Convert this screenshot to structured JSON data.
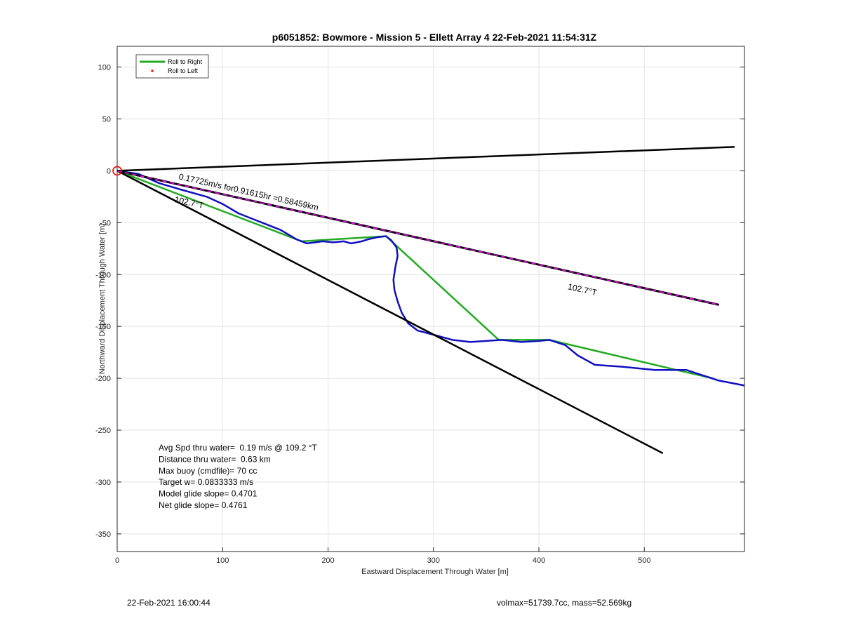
{
  "chart_data": {
    "type": "line",
    "title": "p6051852: Bowmore - Mission 5 - Ellett Array 4 22-Feb-2021 11:54:31Z",
    "xlabel": "Eastward Displacement Through Water [m]",
    "ylabel": "Northward Displacement Through Water [m]",
    "xlim": [
      0,
      595
    ],
    "ylim": [
      -367,
      120
    ],
    "xticks": [
      0,
      100,
      200,
      300,
      400,
      500
    ],
    "yticks": [
      100,
      50,
      0,
      -50,
      -100,
      -150,
      -200,
      -250,
      -300,
      -350
    ],
    "grid": true,
    "legend": {
      "position": "top-left",
      "entries": [
        {
          "label": "Roll to Right",
          "color": "#22aa22",
          "style": "line"
        },
        {
          "label": "Roll to Left",
          "color": "#ff0000",
          "style": "dot"
        }
      ]
    },
    "series": [
      {
        "name": "Roll to Right",
        "color": "#22aa22",
        "points": [
          [
            0,
            0
          ],
          [
            175,
            -68
          ],
          [
            255,
            -63
          ],
          [
            362,
            -163
          ],
          [
            410,
            -163
          ],
          [
            535,
            -193
          ],
          [
            565,
            -200
          ]
        ]
      },
      {
        "color": "#1010c0",
        "points": [
          [
            0,
            0
          ],
          [
            20,
            -3
          ],
          [
            40,
            -12
          ],
          [
            60,
            -18
          ],
          [
            85,
            -25
          ],
          [
            100,
            -32
          ],
          [
            115,
            -41
          ],
          [
            130,
            -47
          ],
          [
            155,
            -57
          ],
          [
            170,
            -66
          ],
          [
            180,
            -70
          ],
          [
            195,
            -68
          ],
          [
            205,
            -69
          ],
          [
            215,
            -68
          ],
          [
            222,
            -70
          ],
          [
            232,
            -68
          ],
          [
            238,
            -66
          ],
          [
            247,
            -64
          ],
          [
            255,
            -63
          ],
          [
            260,
            -67
          ],
          [
            265,
            -74
          ],
          [
            266,
            -82
          ],
          [
            264,
            -92
          ],
          [
            262,
            -105
          ],
          [
            263,
            -115
          ],
          [
            266,
            -126
          ],
          [
            270,
            -137
          ],
          [
            276,
            -147
          ],
          [
            285,
            -154
          ],
          [
            300,
            -158
          ],
          [
            318,
            -163
          ],
          [
            335,
            -165
          ],
          [
            350,
            -164
          ],
          [
            365,
            -163
          ],
          [
            383,
            -165
          ],
          [
            400,
            -164
          ],
          [
            410,
            -163
          ],
          [
            425,
            -168
          ],
          [
            437,
            -178
          ],
          [
            453,
            -187
          ],
          [
            480,
            -189
          ],
          [
            510,
            -192
          ],
          [
            540,
            -192
          ],
          [
            555,
            -197
          ],
          [
            570,
            -202
          ],
          [
            585,
            -205
          ],
          [
            600,
            -208
          ]
        ]
      },
      {
        "color": "#000000",
        "points": [
          [
            0,
            0
          ],
          [
            585,
            23
          ]
        ]
      },
      {
        "color": "#000000",
        "points": [
          [
            0,
            0
          ],
          [
            517,
            -272
          ]
        ]
      },
      {
        "color": "#000000",
        "dash_color": "#ff00ff",
        "points": [
          [
            0,
            0
          ],
          [
            570,
            -129
          ]
        ]
      }
    ],
    "start_marker": {
      "x": 0,
      "y": 0,
      "color": "#ff0000"
    },
    "annotations": [
      {
        "text": "0.17725m/s for0.91615hr =0.58459km",
        "x": 58,
        "y": -8,
        "angle_deg": 12.7
      },
      {
        "text": "102.7°T",
        "x": 54,
        "y": -30,
        "angle_deg": 12.7
      },
      {
        "text": "102.7°T",
        "x": 427,
        "y": -114,
        "angle_deg": 12.7
      }
    ],
    "stats": [
      "Avg Spd thru water=  0.19 m/s @ 109.2 °T",
      "Distance thru water=  0.63 km",
      "Max buoy (cmdfile)= 70 cc",
      "Target w= 0.0833333 m/s",
      "Model glide slope= 0.4701",
      "Net glide slope= 0.4761"
    ]
  },
  "footer": {
    "timestamp": "22-Feb-2021 16:00:44",
    "volume_mass": "volmax=51739.7cc, mass=52.569kg"
  }
}
